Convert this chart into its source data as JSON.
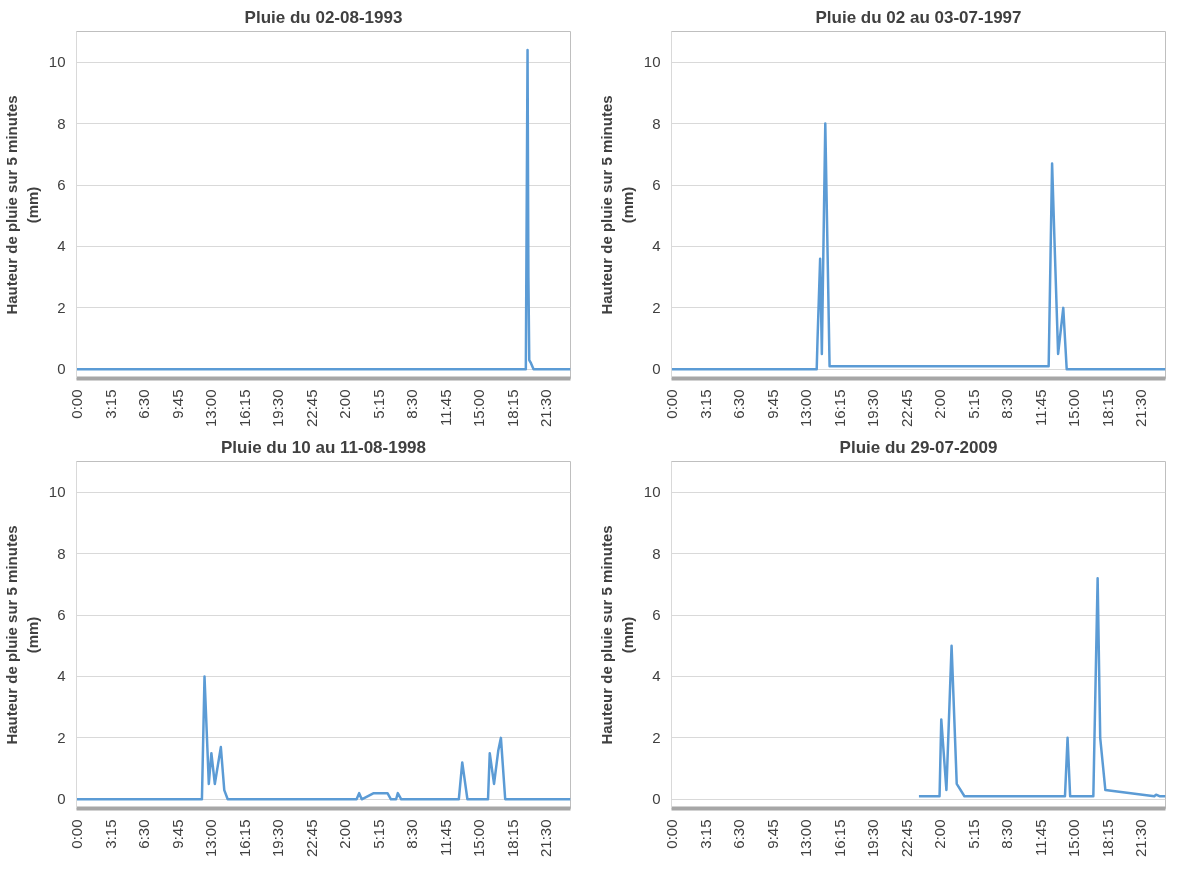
{
  "chart_data": [
    {
      "type": "line",
      "title": "Pluie du 02-08-1993",
      "ylabel": "Hauteur de pluie sur 5 minutes\n(mm)",
      "color": "#5b9bd5",
      "grid": "y",
      "marker": "none",
      "x": [
        "1993-08-01T00:00",
        "1993-08-02T19:35",
        "1993-08-02T19:45",
        "1993-08-02T19:50",
        "1993-08-02T19:55",
        "1993-08-02T20:05",
        "1993-08-02T20:20",
        "1993-08-02T23:55"
      ],
      "values": [
        0,
        0,
        10.4,
        3,
        0.3,
        0.2,
        0,
        0
      ],
      "xlim": [
        "1993-08-01T00:00",
        "1993-08-02T23:55"
      ],
      "ylim": [
        -0.3,
        11
      ],
      "yticks": [
        0,
        2,
        4,
        6,
        8,
        10
      ],
      "xticks": [
        {
          "value": "1993-08-01T00:00",
          "label": "0:00"
        },
        {
          "value": "1993-08-01T03:15",
          "label": "3:15"
        },
        {
          "value": "1993-08-01T06:30",
          "label": "6:30"
        },
        {
          "value": "1993-08-01T09:45",
          "label": "9:45"
        },
        {
          "value": "1993-08-01T13:00",
          "label": "13:00"
        },
        {
          "value": "1993-08-01T16:15",
          "label": "16:15"
        },
        {
          "value": "1993-08-01T19:30",
          "label": "19:30"
        },
        {
          "value": "1993-08-01T22:45",
          "label": "22:45"
        },
        {
          "value": "1993-08-02T02:00",
          "label": "2:00"
        },
        {
          "value": "1993-08-02T05:15",
          "label": "5:15"
        },
        {
          "value": "1993-08-02T08:30",
          "label": "8:30"
        },
        {
          "value": "1993-08-02T11:45",
          "label": "11:45"
        },
        {
          "value": "1993-08-02T15:00",
          "label": "15:00"
        },
        {
          "value": "1993-08-02T18:15",
          "label": "18:15"
        },
        {
          "value": "1993-08-02T21:30",
          "label": "21:30"
        }
      ]
    },
    {
      "type": "line",
      "title": "Pluie du 02 au 03-07-1997",
      "ylabel": "Hauteur de pluie sur 5 minutes\n(mm)",
      "color": "#5b9bd5",
      "grid": "y",
      "marker": "none",
      "x": [
        "1997-07-02T00:00",
        "1997-07-02T14:05",
        "1997-07-02T14:10",
        "1997-07-02T14:25",
        "1997-07-02T14:35",
        "1997-07-02T14:55",
        "1997-07-02T15:20",
        "1997-07-03T12:35",
        "1997-07-03T12:55",
        "1997-07-03T13:10",
        "1997-07-03T13:30",
        "1997-07-03T14:00",
        "1997-07-03T14:20",
        "1997-07-03T23:55"
      ],
      "values": [
        0,
        0,
        1,
        3.6,
        0.5,
        8,
        0.1,
        0.1,
        6.7,
        4,
        0.5,
        2,
        0,
        0
      ],
      "xlim": [
        "1997-07-02T00:00",
        "1997-07-03T23:55"
      ],
      "ylim": [
        -0.3,
        11
      ],
      "yticks": [
        0,
        2,
        4,
        6,
        8,
        10
      ],
      "xticks": [
        {
          "value": "1997-07-02T00:00",
          "label": "0:00"
        },
        {
          "value": "1997-07-02T03:15",
          "label": "3:15"
        },
        {
          "value": "1997-07-02T06:30",
          "label": "6:30"
        },
        {
          "value": "1997-07-02T09:45",
          "label": "9:45"
        },
        {
          "value": "1997-07-02T13:00",
          "label": "13:00"
        },
        {
          "value": "1997-07-02T16:15",
          "label": "16:15"
        },
        {
          "value": "1997-07-02T19:30",
          "label": "19:30"
        },
        {
          "value": "1997-07-02T22:45",
          "label": "22:45"
        },
        {
          "value": "1997-07-03T02:00",
          "label": "2:00"
        },
        {
          "value": "1997-07-03T05:15",
          "label": "5:15"
        },
        {
          "value": "1997-07-03T08:30",
          "label": "8:30"
        },
        {
          "value": "1997-07-03T11:45",
          "label": "11:45"
        },
        {
          "value": "1997-07-03T15:00",
          "label": "15:00"
        },
        {
          "value": "1997-07-03T18:15",
          "label": "18:15"
        },
        {
          "value": "1997-07-03T21:30",
          "label": "21:30"
        }
      ]
    },
    {
      "type": "line",
      "title": "Pluie du 10 au 11-08-1998",
      "ylabel": "Hauteur de pluie sur 5 minutes\n(mm)",
      "color": "#5b9bd5",
      "grid": "y",
      "marker": "none",
      "x": [
        "1998-08-10T00:00",
        "1998-08-10T12:10",
        "1998-08-10T12:25",
        "1998-08-10T12:50",
        "1998-08-10T13:05",
        "1998-08-10T13:25",
        "1998-08-10T14:00",
        "1998-08-10T14:20",
        "1998-08-10T14:40",
        "1998-08-11T03:10",
        "1998-08-11T03:25",
        "1998-08-11T03:40",
        "1998-08-11T04:50",
        "1998-08-11T06:10",
        "1998-08-11T06:30",
        "1998-08-11T07:00",
        "1998-08-11T07:10",
        "1998-08-11T07:30",
        "1998-08-11T13:05",
        "1998-08-11T13:25",
        "1998-08-11T13:55",
        "1998-08-11T15:55",
        "1998-08-11T16:05",
        "1998-08-11T16:30",
        "1998-08-11T16:55",
        "1998-08-11T17:10",
        "1998-08-11T17:35",
        "1998-08-11T23:55"
      ],
      "values": [
        0,
        0,
        4,
        0.5,
        1.5,
        0.5,
        1.7,
        0.3,
        0,
        0,
        0.2,
        0,
        0.2,
        0.2,
        0,
        0,
        0.2,
        0,
        0,
        1.2,
        0,
        0,
        1.5,
        0.5,
        1.6,
        2,
        0,
        0
      ],
      "xlim": [
        "1998-08-10T00:00",
        "1998-08-11T23:55"
      ],
      "ylim": [
        -0.3,
        11
      ],
      "yticks": [
        0,
        2,
        4,
        6,
        8,
        10
      ],
      "xticks": [
        {
          "value": "1998-08-10T00:00",
          "label": "0:00"
        },
        {
          "value": "1998-08-10T03:15",
          "label": "3:15"
        },
        {
          "value": "1998-08-10T06:30",
          "label": "6:30"
        },
        {
          "value": "1998-08-10T09:45",
          "label": "9:45"
        },
        {
          "value": "1998-08-10T13:00",
          "label": "13:00"
        },
        {
          "value": "1998-08-10T16:15",
          "label": "16:15"
        },
        {
          "value": "1998-08-10T19:30",
          "label": "19:30"
        },
        {
          "value": "1998-08-10T22:45",
          "label": "22:45"
        },
        {
          "value": "1998-08-11T02:00",
          "label": "2:00"
        },
        {
          "value": "1998-08-11T05:15",
          "label": "5:15"
        },
        {
          "value": "1998-08-11T08:30",
          "label": "8:30"
        },
        {
          "value": "1998-08-11T11:45",
          "label": "11:45"
        },
        {
          "value": "1998-08-11T15:00",
          "label": "15:00"
        },
        {
          "value": "1998-08-11T18:15",
          "label": "18:15"
        },
        {
          "value": "1998-08-11T21:30",
          "label": "21:30"
        }
      ]
    },
    {
      "type": "line",
      "title": "Pluie du 29-07-2009",
      "ylabel": "Hauteur de pluie sur 5 minutes\n(mm)",
      "color": "#5b9bd5",
      "grid": "y",
      "marker": "none",
      "x": [
        "2009-07-29T00:00",
        "2009-07-29T02:00",
        "2009-07-29T02:10",
        "2009-07-29T02:40",
        "2009-07-29T03:10",
        "2009-07-29T03:40",
        "2009-07-29T04:25",
        "2009-07-29T14:10",
        "2009-07-29T14:25",
        "2009-07-29T14:40",
        "2009-07-29T16:55",
        "2009-07-29T17:20",
        "2009-07-29T17:35",
        "2009-07-29T18:05",
        "2009-07-29T22:50",
        "2009-07-29T23:00",
        "2009-07-29T23:20",
        "2009-07-29T23:55"
      ],
      "values": [
        0.1,
        0.1,
        2.6,
        0.3,
        5,
        0.5,
        0.1,
        0.1,
        2,
        0.1,
        0.1,
        7.2,
        2,
        0.3,
        0.1,
        0.15,
        0.1,
        0.1
      ],
      "xlim": [
        "2009-07-28T00:00",
        "2009-07-29T23:55"
      ],
      "ylim": [
        -0.3,
        11
      ],
      "yticks": [
        0,
        2,
        4,
        6,
        8,
        10
      ],
      "xticks": [
        {
          "value": "2009-07-28T00:00",
          "label": "0:00"
        },
        {
          "value": "2009-07-28T03:15",
          "label": "3:15"
        },
        {
          "value": "2009-07-28T06:30",
          "label": "6:30"
        },
        {
          "value": "2009-07-28T09:45",
          "label": "9:45"
        },
        {
          "value": "2009-07-28T13:00",
          "label": "13:00"
        },
        {
          "value": "2009-07-28T16:15",
          "label": "16:15"
        },
        {
          "value": "2009-07-28T19:30",
          "label": "19:30"
        },
        {
          "value": "2009-07-28T22:45",
          "label": "22:45"
        },
        {
          "value": "2009-07-29T02:00",
          "label": "2:00"
        },
        {
          "value": "2009-07-29T05:15",
          "label": "5:15"
        },
        {
          "value": "2009-07-29T08:30",
          "label": "8:30"
        },
        {
          "value": "2009-07-29T11:45",
          "label": "11:45"
        },
        {
          "value": "2009-07-29T15:00",
          "label": "15:00"
        },
        {
          "value": "2009-07-29T18:15",
          "label": "18:15"
        },
        {
          "value": "2009-07-29T21:30",
          "label": "21:30"
        }
      ]
    }
  ]
}
